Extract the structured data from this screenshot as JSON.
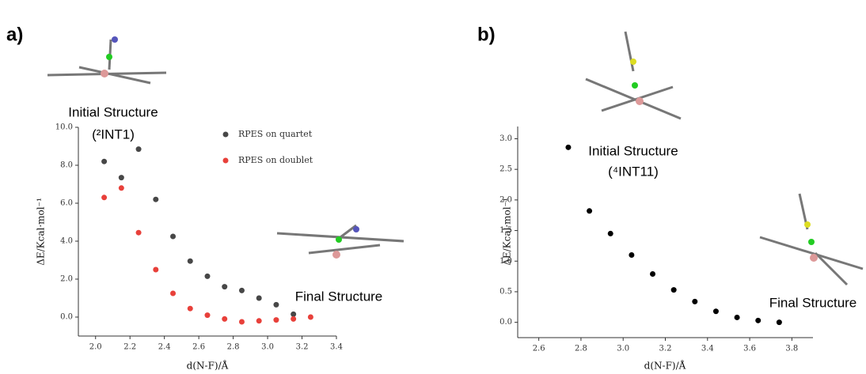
{
  "chart_data": [
    {
      "type": "scatter",
      "panel_label": "a)",
      "x_label": "d(N-F)/Å",
      "y_label": "ΔE/Kcal·mol⁻¹",
      "annotations": [
        "Initial Structure",
        "(²INT1)",
        "Final Structure"
      ],
      "xlim": [
        1.9,
        3.4
      ],
      "xticks": [
        {
          "value": 2,
          "label": "2.0"
        },
        2.2,
        2.4,
        2.6,
        2.8,
        {
          "value": 3,
          "label": "3.0"
        },
        3.2,
        3.4
      ],
      "ylim": [
        -1,
        10
      ],
      "yticks": [
        {
          "value": 0,
          "label": "0.0"
        },
        {
          "value": 2,
          "label": "2.0"
        },
        {
          "value": 4,
          "label": "4.0"
        },
        {
          "value": 6,
          "label": "6.0"
        },
        {
          "value": 8,
          "label": "8.0"
        },
        {
          "value": 10,
          "label": "10.0"
        }
      ],
      "series": [
        {
          "name": "RPES on quartet",
          "color": "#474747",
          "x": [
            2.05,
            2.15,
            2.25,
            2.35,
            2.45,
            2.55,
            2.65,
            2.75,
            2.85,
            2.95,
            3.05,
            3.15
          ],
          "values": [
            8.2,
            7.35,
            8.85,
            6.2,
            4.25,
            2.95,
            2.15,
            1.6,
            1.4,
            1.0,
            0.65,
            0.15
          ]
        },
        {
          "name": "RPES on doublet",
          "color": "#e8403a",
          "x": [
            2.05,
            2.15,
            2.25,
            2.35,
            2.45,
            2.55,
            2.65,
            2.75,
            2.85,
            2.95,
            3.05,
            3.15,
            3.25
          ],
          "values": [
            6.3,
            6.8,
            4.45,
            2.5,
            1.25,
            0.45,
            0.1,
            -0.1,
            -0.25,
            -0.2,
            -0.15,
            -0.1,
            0.0
          ]
        }
      ]
    },
    {
      "type": "scatter",
      "panel_label": "b)",
      "x_label": "d(N-F)/Å",
      "y_label": "ΔE/Kcal·mol⁻¹",
      "annotations": [
        "Initial Structure",
        "(⁴INT11)",
        "Final Structure"
      ],
      "xlim": [
        2.5,
        3.9
      ],
      "xticks": [
        2.6,
        2.8,
        {
          "value": 3,
          "label": "3.0"
        },
        3.2,
        3.4,
        3.6,
        3.8
      ],
      "ylim": [
        -0.25,
        3.2
      ],
      "yticks": [
        {
          "value": 0,
          "label": "0.0"
        },
        0.5,
        {
          "value": 1,
          "label": "1.0"
        },
        1.5,
        {
          "value": 2,
          "label": "2.0"
        },
        2.5,
        {
          "value": 3,
          "label": "3.0"
        }
      ],
      "series": [
        {
          "color": "#000000",
          "x": [
            2.74,
            2.84,
            2.94,
            3.04,
            3.14,
            3.24,
            3.34,
            3.44,
            3.54,
            3.64,
            3.74
          ],
          "values": [
            2.86,
            1.82,
            1.45,
            1.1,
            0.79,
            0.53,
            0.34,
            0.18,
            0.08,
            0.03,
            0.0
          ]
        }
      ]
    }
  ]
}
